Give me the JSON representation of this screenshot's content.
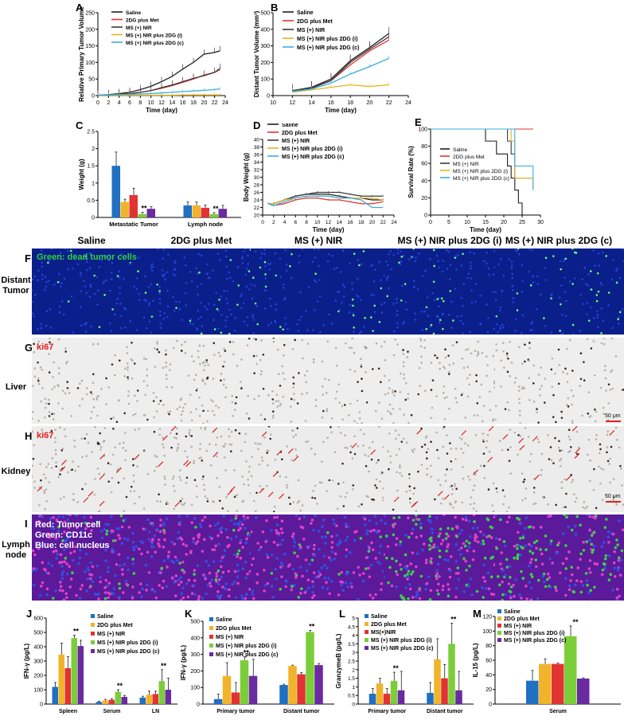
{
  "panels": {
    "A": "A",
    "B": "B",
    "C": "C",
    "D": "D",
    "E": "E",
    "F": "F",
    "G": "G",
    "H": "H",
    "I": "I",
    "J": "J",
    "K": "K",
    "L": "L",
    "M": "M"
  },
  "colors": {
    "saline": "#1f1f1f",
    "met": "#e3342f",
    "nir": "#3a3a3a",
    "i": "#e6b422",
    "c": "#3aaee0",
    "blue": "#1f6fc2",
    "orange": "#f0b42a",
    "red": "#e23333",
    "green": "#7ccd3a",
    "purple": "#6a2aa0"
  },
  "columns": [
    "Saline",
    "2DG plus Met",
    "MS (+) NIR",
    "MS (+) NIR plus 2DG (i)",
    "MS (+) NIR plus 2DG (c)"
  ],
  "rows": {
    "F": "Distant Tumor",
    "G": "Liver",
    "H": "Kidney",
    "I": "Lymph node"
  },
  "micro_text": {
    "f_note": "Green: dead tumor cells",
    "g_note": "ki67",
    "h_note": "ki67",
    "i_note1": "Red: Tumor cell",
    "i_note2": "Green: CD11c",
    "i_note3": "Blue: cell nucleus",
    "scale": "50 μm"
  },
  "chart_data": [
    {
      "panel": "A",
      "type": "line",
      "ylabel": "Relative Primary Tumor Volume",
      "xlabel": "Time (day)",
      "xlim": [
        0,
        24
      ],
      "ylim": [
        0,
        250
      ],
      "xticks": [
        0,
        2,
        4,
        6,
        8,
        10,
        12,
        14,
        16,
        18,
        20,
        22,
        24
      ],
      "yticks": [
        0,
        50,
        100,
        150,
        200,
        250
      ],
      "legend": [
        "Saline",
        "2DG plus Met",
        "MS (+) NIR",
        "MS (+) NIR plus 2DG (i)",
        "MS (+) NIR plus 2DG (c)"
      ],
      "x": [
        0,
        2,
        4,
        6,
        8,
        10,
        12,
        14,
        16,
        18,
        20,
        22,
        23
      ],
      "series": [
        {
          "name": "Saline",
          "values": [
            1,
            3,
            6,
            10,
            18,
            28,
            42,
            58,
            80,
            100,
            125,
            130,
            135
          ]
        },
        {
          "name": "2DG plus Met",
          "values": [
            1,
            2,
            4,
            6,
            10,
            15,
            22,
            30,
            40,
            50,
            62,
            70,
            78
          ]
        },
        {
          "name": "MS (+) NIR",
          "values": [
            1,
            2,
            4,
            6,
            10,
            15,
            24,
            32,
            42,
            52,
            60,
            70,
            82
          ]
        },
        {
          "name": "MS (+) NIR plus 2DG (i)",
          "values": [
            1,
            1,
            1,
            1,
            1,
            1,
            1,
            1,
            2,
            2,
            2,
            2,
            2
          ]
        },
        {
          "name": "MS (+) NIR plus 2DG (c)",
          "values": [
            1,
            2,
            3,
            4,
            5,
            6,
            8,
            10,
            12,
            14,
            16,
            18,
            20
          ]
        }
      ]
    },
    {
      "panel": "B",
      "type": "line",
      "ylabel": "Distant Tumor Volume (mm³)",
      "xlabel": "Time (day)",
      "xlim": [
        10,
        24
      ],
      "ylim": [
        0,
        500
      ],
      "xticks": [
        10,
        12,
        14,
        16,
        18,
        20,
        22,
        24
      ],
      "yticks": [
        0,
        100,
        200,
        300,
        400,
        500
      ],
      "legend": [
        "Saline",
        "2DG plus Met",
        "MS (+) NIR",
        "MS (+) NIR plus 2DG (i)",
        "MS (+) NIR plus 2DG (c)"
      ],
      "x": [
        12,
        14,
        16,
        18,
        20,
        22
      ],
      "series": [
        {
          "name": "Saline",
          "values": [
            30,
            50,
            100,
            210,
            290,
            375
          ]
        },
        {
          "name": "2DG plus Met",
          "values": [
            30,
            45,
            90,
            185,
            270,
            335
          ]
        },
        {
          "name": "MS (+) NIR",
          "values": [
            30,
            45,
            90,
            200,
            280,
            355
          ]
        },
        {
          "name": "MS (+) NIR plus 2DG (i)",
          "values": [
            20,
            35,
            50,
            65,
            55,
            65
          ]
        },
        {
          "name": "MS (+) NIR plus 2DG (c)",
          "values": [
            25,
            40,
            75,
            130,
            175,
            225
          ]
        }
      ]
    },
    {
      "panel": "C",
      "type": "bar",
      "ylabel": "Weight (g)",
      "ylim": [
        0,
        2.5
      ],
      "yticks": [
        0,
        0.5,
        1,
        1.5,
        2,
        2.5
      ],
      "categories": [
        "Metastatic Tumor",
        "Lymph node"
      ],
      "series": [
        {
          "name": "Saline",
          "values": [
            1.5,
            0.35
          ]
        },
        {
          "name": "2DG plus Met",
          "values": [
            0.45,
            0.35
          ]
        },
        {
          "name": "MS (+) NIR",
          "values": [
            0.65,
            0.28
          ]
        },
        {
          "name": "MS (+) NIR plus 2DG (i)",
          "values": [
            0.1,
            0.1
          ]
        },
        {
          "name": "MS (+) NIR plus 2DG (c)",
          "values": [
            0.25,
            0.25
          ]
        }
      ],
      "errors": [
        [
          0.4,
          0.1
        ],
        [
          0.08,
          0.1
        ],
        [
          0.2,
          0.08
        ],
        [
          0.05,
          0.04
        ],
        [
          0.06,
          0.1
        ]
      ],
      "annotations": [
        "**",
        "**"
      ]
    },
    {
      "panel": "D",
      "type": "line",
      "ylabel": "Body Weight (g)",
      "xlabel": "Time (day)",
      "xlim": [
        0,
        24
      ],
      "ylim": [
        20,
        40
      ],
      "xticks": [
        0,
        2,
        4,
        6,
        8,
        10,
        12,
        14,
        16,
        18,
        20,
        22,
        24
      ],
      "yticks": [
        20,
        22,
        24,
        26,
        28,
        30,
        32,
        34,
        36,
        38,
        40
      ],
      "legend": [
        "Saline",
        "2DG plus Met",
        "MS (+) NIR",
        "MS (+) NIR plus 2DG (i)",
        "MS (+) NIR plus 2DG (c)"
      ],
      "x": [
        1,
        2,
        4,
        6,
        8,
        10,
        12,
        14,
        16,
        18,
        20,
        22
      ],
      "series": [
        {
          "name": "Saline",
          "values": [
            23,
            23,
            24,
            25,
            25.5,
            25.5,
            25.5,
            25,
            24.5,
            24.5,
            24,
            24
          ]
        },
        {
          "name": "2DG plus Met",
          "values": [
            23,
            22.5,
            23,
            24,
            24.5,
            24.5,
            24,
            24,
            23.5,
            23,
            23,
            23.5
          ]
        },
        {
          "name": "MS (+) NIR",
          "values": [
            23,
            23,
            24,
            25,
            25.5,
            26,
            26,
            26,
            25.5,
            25,
            25,
            25
          ]
        },
        {
          "name": "MS (+) NIR plus 2DG (i)",
          "values": [
            23,
            23,
            24,
            24.5,
            25,
            25,
            25,
            24.5,
            24.5,
            24.5,
            24.5,
            24
          ]
        },
        {
          "name": "MS (+) NIR plus 2DG (c)",
          "values": [
            23,
            22.5,
            23.5,
            24.5,
            25,
            25,
            25,
            24.5,
            24.5,
            24,
            22,
            22
          ]
        }
      ]
    },
    {
      "panel": "E",
      "type": "line",
      "ylabel": "Survival Rate (%)",
      "xlabel": "Time (day)",
      "xlim": [
        0,
        30
      ],
      "ylim": [
        0,
        100
      ],
      "xticks": [
        0,
        5,
        10,
        15,
        20,
        25,
        30
      ],
      "yticks": [
        0,
        20,
        40,
        60,
        80,
        100
      ],
      "legend": [
        "Saline",
        "2DG plus Met",
        "MS (+) NIR",
        "MS (+) NIR plus 2DG (i)",
        "MS (+) NIR plus 2DG (c)"
      ],
      "series": [
        {
          "name": "Saline",
          "steps": [
            [
              0,
              100
            ],
            [
              15,
              100
            ],
            [
              15,
              86
            ],
            [
              18,
              86
            ],
            [
              18,
              71
            ],
            [
              21,
              71
            ],
            [
              21,
              57
            ],
            [
              22,
              57
            ],
            [
              22,
              43
            ],
            [
              23,
              43
            ],
            [
              23,
              29
            ],
            [
              24,
              29
            ],
            [
              24,
              14
            ],
            [
              25,
              14
            ],
            [
              25,
              0
            ]
          ]
        },
        {
          "name": "2DG plus Met",
          "steps": [
            [
              0,
              100
            ],
            [
              28,
              100
            ]
          ]
        },
        {
          "name": "MS (+) NIR",
          "steps": [
            [
              0,
              100
            ],
            [
              21,
              100
            ],
            [
              21,
              86
            ],
            [
              22,
              86
            ],
            [
              22,
              71
            ],
            [
              23,
              71
            ],
            [
              23,
              43
            ],
            [
              28,
              43
            ]
          ]
        },
        {
          "name": "MS (+) NIR plus 2DG (i)",
          "steps": [
            [
              0,
              100
            ],
            [
              22,
              100
            ],
            [
              22,
              86
            ],
            [
              23,
              86
            ],
            [
              23,
              43
            ],
            [
              28,
              43
            ],
            [
              28,
              29
            ]
          ]
        },
        {
          "name": "MS (+) NIR plus 2DG (c)",
          "steps": [
            [
              0,
              100
            ],
            [
              23,
              100
            ],
            [
              23,
              57
            ],
            [
              28,
              57
            ],
            [
              28,
              29
            ]
          ]
        }
      ]
    },
    {
      "panel": "J",
      "type": "bar",
      "ylabel": "IFN-γ (pg/L)",
      "ylim": [
        0,
        600
      ],
      "yticks": [
        0,
        100,
        200,
        300,
        400,
        500,
        600
      ],
      "categories": [
        "Spleen",
        "Serum",
        "LN"
      ],
      "series": [
        {
          "name": "Saline",
          "values": [
            120,
            15,
            45
          ]
        },
        {
          "name": "2DG plus Met",
          "values": [
            345,
            25,
            65
          ]
        },
        {
          "name": "MS (+) NIR",
          "values": [
            250,
            30,
            70
          ]
        },
        {
          "name": "MS (+) NIR plus 2DG (i)",
          "values": [
            460,
            85,
            160
          ]
        },
        {
          "name": "MS (+) NIR plus 2DG (c)",
          "values": [
            405,
            50,
            100
          ]
        }
      ],
      "errors": [
        [
          30,
          5,
          10
        ],
        [
          80,
          8,
          25
        ],
        [
          80,
          8,
          20
        ],
        [
          20,
          15,
          80
        ],
        [
          40,
          10,
          80
        ]
      ],
      "annotations": [
        "**",
        "**",
        "**"
      ]
    },
    {
      "panel": "K",
      "type": "bar",
      "ylabel": "IFN-γ (pg/L)",
      "ylim": [
        0,
        500
      ],
      "yticks": [
        0,
        100,
        200,
        300,
        400,
        500
      ],
      "categories": [
        "Primary tumor",
        "Distant tumor"
      ],
      "series": [
        {
          "name": "Saline",
          "values": [
            30,
            115
          ]
        },
        {
          "name": "2DG plus Met",
          "values": [
            170,
            230
          ]
        },
        {
          "name": "MS (+) NIR",
          "values": [
            70,
            180
          ]
        },
        {
          "name": "MS (+) NIR plus 2DG (i)",
          "values": [
            265,
            435
          ]
        },
        {
          "name": "MS (+) NIR plus 2DG (c)",
          "values": [
            170,
            235
          ]
        }
      ],
      "errors": [
        [
          30,
          5
        ],
        [
          80,
          5
        ],
        [
          60,
          10
        ],
        [
          20,
          10
        ],
        [
          100,
          10
        ]
      ],
      "annotations": [
        "**",
        "**"
      ]
    },
    {
      "panel": "L",
      "type": "bar",
      "ylabel": "GranzymeB (pg/L)",
      "ylim": [
        0,
        5
      ],
      "yticks": [
        0,
        0.5,
        1,
        1.5,
        2,
        2.5,
        3,
        3.5,
        4,
        4.5,
        5
      ],
      "legend": [
        "Saline",
        "2DG plus Met",
        "MS(+)NIR",
        "MS (+) NIR plus 2DG (i)",
        "MS (+) NIR plus 2DG (c)"
      ],
      "categories": [
        "Primary tumor",
        "Distant tumor"
      ],
      "series": [
        {
          "name": "Saline",
          "values": [
            0.6,
            0.65
          ]
        },
        {
          "name": "2DG plus Met",
          "values": [
            1.2,
            2.6
          ]
        },
        {
          "name": "MS(+)NIR",
          "values": [
            0.6,
            1.5
          ]
        },
        {
          "name": "MS (+) NIR plus 2DG (i)",
          "values": [
            1.35,
            3.5
          ]
        },
        {
          "name": "MS (+) NIR plus 2DG (c)",
          "values": [
            0.8,
            0.8
          ]
        }
      ],
      "errors": [
        [
          0.3,
          0.6
        ],
        [
          0.3,
          1.2
        ],
        [
          0.3,
          0.8
        ],
        [
          0.5,
          1.2
        ],
        [
          1.1,
          1.1
        ]
      ],
      "annotations": [
        "**",
        "**"
      ]
    },
    {
      "panel": "M",
      "type": "bar",
      "ylabel": "IL-15 (pg/L)",
      "ylim": [
        0,
        120
      ],
      "yticks": [
        0,
        20,
        40,
        60,
        80,
        100,
        120
      ],
      "categories": [
        "Serum"
      ],
      "series": [
        {
          "name": "Saline",
          "values": [
            32
          ]
        },
        {
          "name": "2DG plus Met",
          "values": [
            55
          ]
        },
        {
          "name": "MS (+) NIR",
          "values": [
            55
          ]
        },
        {
          "name": "MS (+) NIR plus 2DG (i)",
          "values": [
            93
          ]
        },
        {
          "name": "MS (+) NIR plus 2DG (c)",
          "values": [
            35
          ]
        }
      ],
      "errors": [
        [
          14
        ],
        [
          7
        ],
        [
          1
        ],
        [
          14
        ],
        [
          1
        ]
      ],
      "annotations": [
        "**"
      ]
    }
  ]
}
